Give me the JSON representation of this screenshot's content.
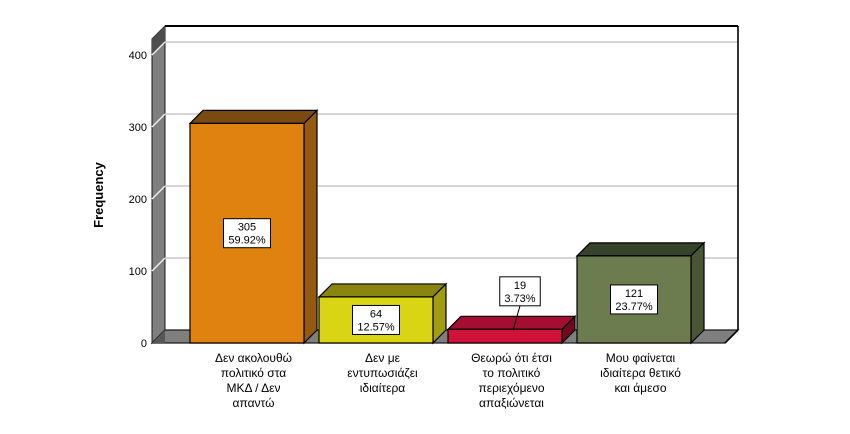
{
  "chart_data": {
    "type": "bar",
    "projection": "3d",
    "title": "",
    "xlabel": "",
    "ylabel": "Frequency",
    "ylim": [
      0,
      440
    ],
    "yticks": [
      0,
      100,
      200,
      300,
      400
    ],
    "grid": true,
    "legend": false,
    "categories": [
      "Δεν ακολουθώ πολιτικό στα ΜΚΔ / Δεν απαντώ",
      "Δεν με εντυπωσιάζει ιδιαίτερα",
      "Θεωρώ ότι έτσι το πολιτικό περιεχόμενο απαξιώνεται",
      "Μου φαίνεται ιδιαίτερα θετικό και άμεσο"
    ],
    "category_label_lines": [
      [
        "Δεν ακολουθώ",
        "πολιτικό στα",
        "ΜΚΔ / Δεν",
        "απαντώ"
      ],
      [
        "Δεν με",
        "εντυπωσιάζει",
        "ιδιαίτερα"
      ],
      [
        "Θεωρώ ότι έτσι",
        "το πολιτικό",
        "περιεχόμενο",
        "απαξιώνεται"
      ],
      [
        "Μου φαίνεται",
        "ιδιαίτερα θετικό",
        "και άμεσο"
      ]
    ],
    "values": [
      305,
      64,
      19,
      121
    ],
    "bar_data_labels": [
      {
        "count": "305",
        "percent": "59.92%",
        "placement": "inside"
      },
      {
        "count": "64",
        "percent": "12.57%",
        "placement": "inside"
      },
      {
        "count": "19",
        "percent": "3.73%",
        "placement": "above"
      },
      {
        "count": "121",
        "percent": "23.77%",
        "placement": "inside"
      }
    ],
    "bar_colors": [
      {
        "front": "#E0820F",
        "top": "#7B4A10",
        "side": "#945A0F"
      },
      {
        "front": "#D9D414",
        "top": "#8A8410",
        "side": "#A39B11"
      },
      {
        "front": "#D01139",
        "top": "#A50E31",
        "side": "#6F0920"
      },
      {
        "front": "#6C7C4E",
        "top": "#36422A",
        "side": "#495635"
      }
    ],
    "wall_color": "#7F7F7F",
    "wall_cap_color": "#4D4D4D",
    "wall_corner_color": "#575757",
    "wall_highlight_color": "#EFEFEF",
    "floor_color": "#7F7F7F",
    "gridline_color": "#C9C9C9",
    "frame_color": "#000000",
    "label_box_fill": "#FFFFFF",
    "background": "#FFFFFF"
  }
}
